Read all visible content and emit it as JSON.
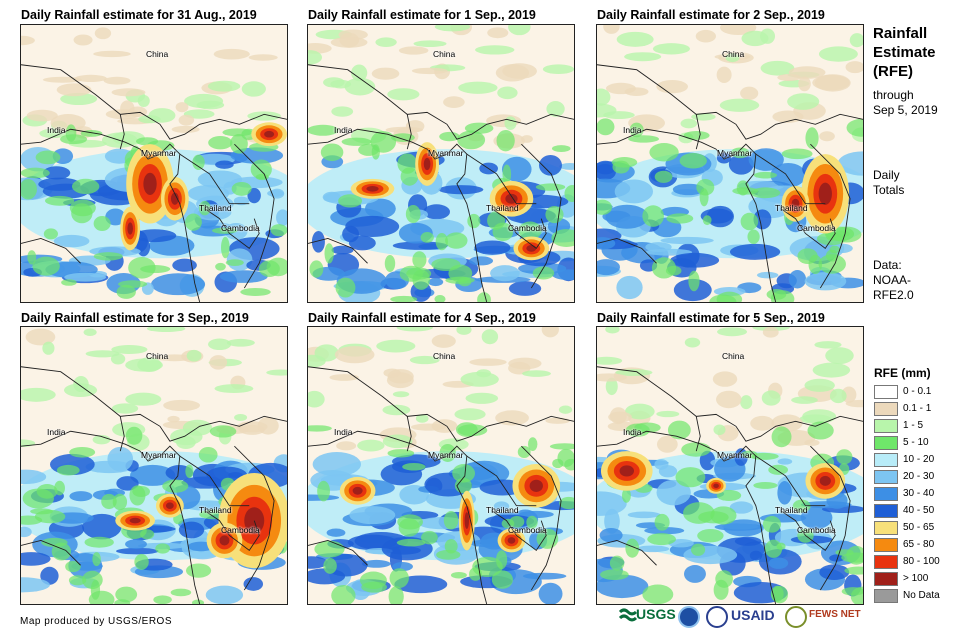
{
  "panels": [
    {
      "title": "Daily Rainfall estimate for 31 Aug., 2019"
    },
    {
      "title": "Daily Rainfall estimate for 1 Sep., 2019"
    },
    {
      "title": "Daily Rainfall estimate for 2 Sep., 2019"
    },
    {
      "title": "Daily Rainfall estimate for 3 Sep., 2019"
    },
    {
      "title": "Daily Rainfall estimate for 4 Sep., 2019"
    },
    {
      "title": "Daily Rainfall estimate for 5 Sep., 2019"
    }
  ],
  "place_labels": {
    "china": "China",
    "india": "India",
    "myanmar": "Myanmar",
    "thailand": "Thailand",
    "cambodia": "Cambodia"
  },
  "sidebar": {
    "title_line1": "Rainfall",
    "title_line2": "Estimate",
    "title_line3": "(RFE)",
    "through": "through",
    "date": "Sep 5, 2019",
    "daily": "Daily",
    "totals": "Totals",
    "data_label": "Data:",
    "data_source1": "NOAA-",
    "data_source2": "RFE2.0"
  },
  "legend": {
    "title": "RFE (mm)",
    "items": [
      {
        "label": "0 - 0.1",
        "color": "#ffffff"
      },
      {
        "label": "0.1 - 1",
        "color": "#ecd9bc"
      },
      {
        "label": "1 - 5",
        "color": "#b8f5ab"
      },
      {
        "label": "5 - 10",
        "color": "#6fe66a"
      },
      {
        "label": "10 - 20",
        "color": "#b8ecf8"
      },
      {
        "label": "20 - 30",
        "color": "#7dc5f2"
      },
      {
        "label": "30 - 40",
        "color": "#3d8fe5"
      },
      {
        "label": "40 - 50",
        "color": "#1f5fd6"
      },
      {
        "label": "50 - 65",
        "color": "#f7e07a"
      },
      {
        "label": "65 - 80",
        "color": "#f58a10"
      },
      {
        "label": "80 - 100",
        "color": "#e8330f"
      },
      {
        "label": "> 100",
        "color": "#a0201a"
      },
      {
        "label": "No Data",
        "color": "#9a9a9a"
      }
    ]
  },
  "footer": {
    "credit": "Map produced by USGS/EROS"
  },
  "logos": {
    "usgs": "USGS",
    "usaid": "USAID",
    "fewsnet": "FEWS NET"
  }
}
